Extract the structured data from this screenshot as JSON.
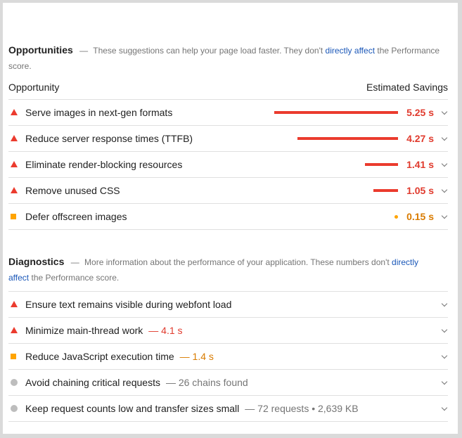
{
  "opportunities": {
    "title": "Opportunities",
    "dash": "—",
    "desc_before": "These suggestions can help your page load faster. They don't",
    "desc_link": "directly affect",
    "desc_after": "the Performance score.",
    "col_left": "Opportunity",
    "col_right": "Estimated Savings",
    "items": [
      {
        "label": "Serve images in next-gen formats",
        "savings": "5.25 s",
        "severity": "fail",
        "value_s": 5.25
      },
      {
        "label": "Reduce server response times (TTFB)",
        "savings": "4.27 s",
        "severity": "fail",
        "value_s": 4.27
      },
      {
        "label": "Eliminate render-blocking resources",
        "savings": "1.41 s",
        "severity": "fail",
        "value_s": 1.41
      },
      {
        "label": "Remove unused CSS",
        "savings": "1.05 s",
        "severity": "fail",
        "value_s": 1.05
      },
      {
        "label": "Defer offscreen images",
        "savings": "0.15 s",
        "severity": "average",
        "value_s": 0.15
      }
    ]
  },
  "diagnostics": {
    "title": "Diagnostics",
    "dash": "—",
    "desc_before": "More information about the performance of your application. These numbers don't",
    "desc_link_1": "directly",
    "desc_link_2": "affect",
    "desc_after": "the Performance score.",
    "items": [
      {
        "label": "Ensure text remains visible during webfont load",
        "extra": "",
        "severity": "fail"
      },
      {
        "label": "Minimize main-thread work",
        "extra": "— 4.1 s",
        "severity": "fail"
      },
      {
        "label": "Reduce JavaScript execution time",
        "extra": "— 1.4 s",
        "severity": "average"
      },
      {
        "label": "Avoid chaining critical requests",
        "extra": "— 26 chains found",
        "severity": "info"
      },
      {
        "label": "Keep request counts low and transfer sizes small",
        "extra": "— 72 requests • 2,639 KB",
        "severity": "info"
      }
    ]
  },
  "colors": {
    "fail": "#eb3b2e",
    "average": "#ffa400",
    "info": "#bdbdbd",
    "link": "#1a57b8"
  },
  "icons": {
    "fail": "red-triangle-icon",
    "average": "orange-square-icon",
    "info": "gray-circle-icon",
    "expand": "chevron-down-icon"
  }
}
